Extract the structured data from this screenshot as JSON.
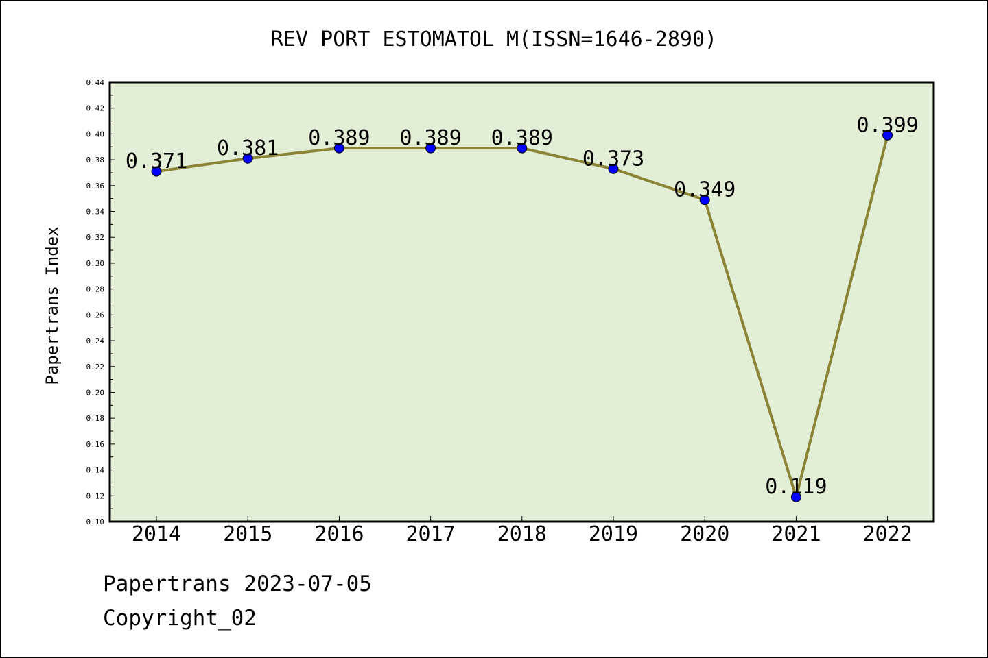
{
  "chart_data": {
    "type": "line",
    "title": "REV PORT ESTOMATOL M(ISSN=1646-2890)",
    "ylabel": "Papertrans Index",
    "xlabel": "",
    "categories": [
      "2014",
      "2015",
      "2016",
      "2017",
      "2018",
      "2019",
      "2020",
      "2021",
      "2022"
    ],
    "values": [
      0.371,
      0.381,
      0.389,
      0.389,
      0.389,
      0.373,
      0.349,
      0.119,
      0.399
    ],
    "data_labels": [
      "0.371",
      "0.381",
      "0.389",
      "0.389",
      "0.389",
      "0.373",
      "0.349",
      "0.119",
      "0.399"
    ],
    "ylim": [
      0.1,
      0.44
    ],
    "yticks": [
      "0.10",
      "0.12",
      "0.14",
      "0.16",
      "0.18",
      "0.20",
      "0.22",
      "0.24",
      "0.26",
      "0.28",
      "0.30",
      "0.32",
      "0.34",
      "0.36",
      "0.38",
      "0.40",
      "0.42",
      "0.44"
    ],
    "grid": false,
    "colors": {
      "plot_background": "#e2efd6",
      "line": "#8b8436",
      "marker": "#0000ff"
    }
  },
  "footer": {
    "date_line": "Papertrans 2023-07-05",
    "copyright": "Copyright_02"
  }
}
